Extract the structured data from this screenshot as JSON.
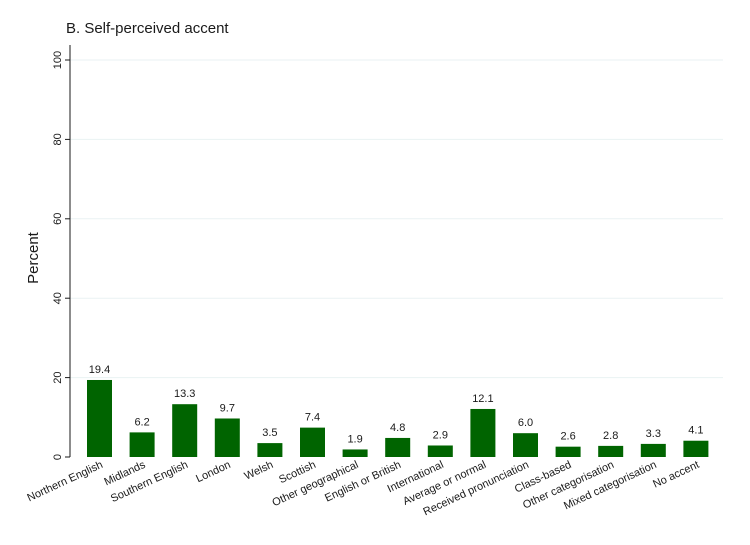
{
  "chart_data": {
    "type": "bar",
    "title": "B. Self-perceived accent",
    "ylabel": "Percent",
    "xlabel": "",
    "ylim": [
      0,
      100
    ],
    "yticks": [
      0,
      20,
      40,
      60,
      80,
      100
    ],
    "grid": true,
    "bar_color": "#006400",
    "categories": [
      "Northern English",
      "Midlands",
      "Southern English",
      "London",
      "Welsh",
      "Scottish",
      "Other geographical",
      "English or British",
      "International",
      "Average or normal",
      "Received pronunciation",
      "Class-based",
      "Other categorisation",
      "Mixed categorisation",
      "No accent"
    ],
    "values": [
      19.4,
      6.2,
      13.3,
      9.7,
      3.5,
      7.4,
      1.9,
      4.8,
      2.9,
      12.1,
      6.0,
      2.6,
      2.8,
      3.3,
      4.1
    ],
    "value_labels": [
      "19.4",
      "6.2",
      "13.3",
      "9.7",
      "3.5",
      "7.4",
      "1.9",
      "4.8",
      "2.9",
      "12.1",
      "6.0",
      "2.6",
      "2.8",
      "3.3",
      "4.1"
    ]
  }
}
